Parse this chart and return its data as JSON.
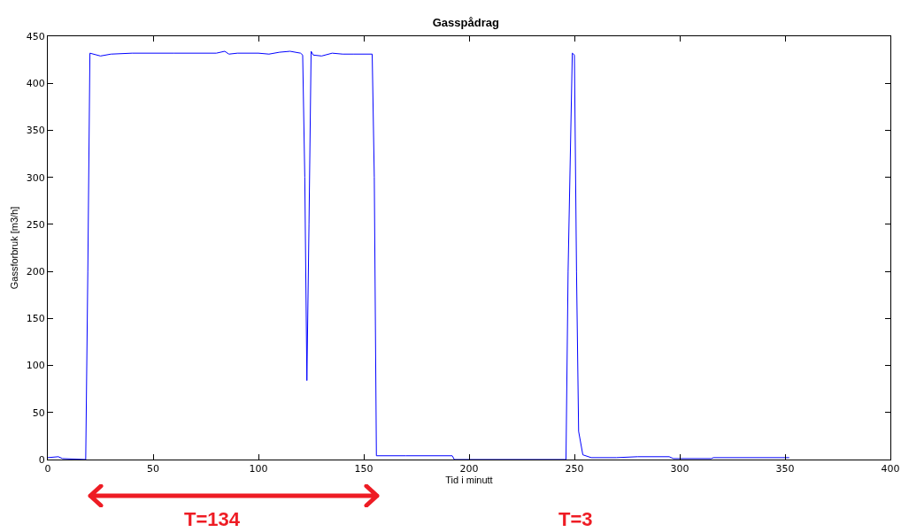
{
  "chart_data": {
    "type": "line",
    "title": "Gasspådrag",
    "xlabel": "Tid i minutt",
    "ylabel": "Gassforbruk [m3/h]",
    "x": [
      0,
      5,
      7,
      18,
      19,
      20,
      25,
      30,
      40,
      60,
      80,
      84,
      86,
      90,
      100,
      105,
      110,
      115,
      120,
      121,
      122,
      123,
      124,
      125,
      126,
      130,
      135,
      140,
      145,
      150,
      154,
      155,
      156,
      170,
      192,
      193,
      246,
      247,
      249,
      250,
      251,
      252,
      254,
      258,
      270,
      280,
      295,
      297,
      315,
      316,
      352
    ],
    "series": [
      {
        "color": "#0000ff",
        "values": [
          2,
          3,
          1,
          0,
          200,
          432,
          429,
          431,
          432,
          432,
          432,
          434,
          431,
          432,
          432,
          431,
          433,
          434,
          432,
          430,
          300,
          84,
          250,
          434,
          430,
          429,
          432,
          431,
          431,
          431,
          431,
          300,
          4,
          4,
          4,
          0,
          0,
          200,
          432,
          430,
          200,
          30,
          5,
          2,
          2,
          3,
          3,
          1,
          1,
          2,
          2
        ]
      }
    ],
    "xlim": [
      0,
      400
    ],
    "xticks": [
      0,
      50,
      100,
      150,
      200,
      250,
      300,
      350,
      400
    ],
    "ylim": [
      0,
      450
    ],
    "yticks": [
      0,
      50,
      100,
      150,
      200,
      250,
      300,
      350,
      400,
      450
    ],
    "grid": false,
    "marker": "none",
    "line_style": "solid",
    "annotations": [
      "T=134",
      "T=3"
    ]
  }
}
